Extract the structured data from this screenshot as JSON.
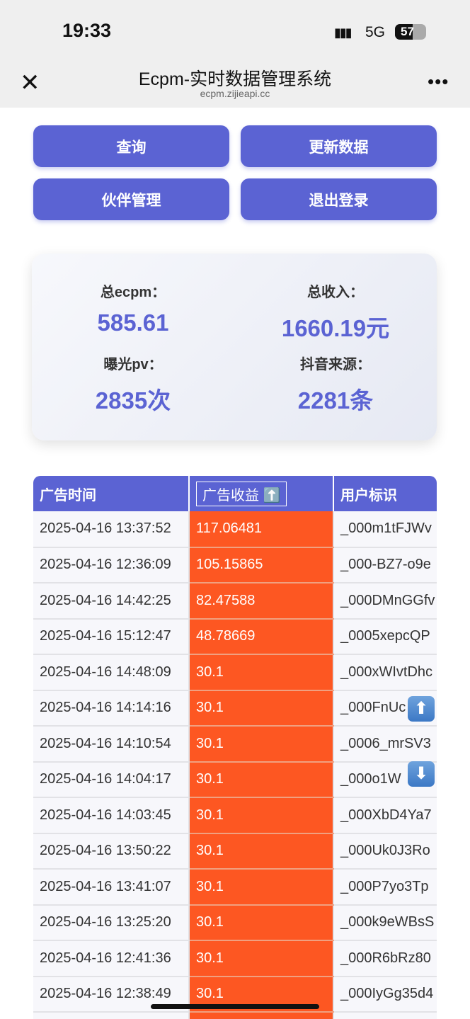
{
  "status": {
    "time": "19:33",
    "signal": "▮▮▮",
    "network": "5G",
    "battery": "57",
    "battery_level": 57
  },
  "browser": {
    "title": "Ecpm-实时数据管理系统",
    "url": "ecpm.zijieapi.cc",
    "close": "✕",
    "more": "•••"
  },
  "buttons": {
    "query": "查询",
    "update": "更新数据",
    "partners": "伙伴管理",
    "logout": "退出登录"
  },
  "stats": {
    "ecpm_label": "总ecpm：",
    "ecpm": "585.61",
    "income_label": "总收入：",
    "income": "1660.19元",
    "pv_label": "曝光pv：",
    "pv": "2835次",
    "source_label": "抖音来源：",
    "source": "2281条"
  },
  "table": {
    "headers": [
      "广告时间",
      "广告收益 ⬆️",
      "用户标识"
    ],
    "rows": [
      [
        "2025-04-16 13:37:52",
        "117.06481",
        "_000m1tFJWv"
      ],
      [
        "2025-04-16 12:36:09",
        "105.15865",
        "_000-BZ7-o9e"
      ],
      [
        "2025-04-16 14:42:25",
        "82.47588",
        "_000DMnGGfv"
      ],
      [
        "2025-04-16 15:12:47",
        "48.78669",
        "_0005xepcQP"
      ],
      [
        "2025-04-16 14:48:09",
        "30.1",
        "_000xWIvtDhc"
      ],
      [
        "2025-04-16 14:14:16",
        "30.1",
        "_000FnUc"
      ],
      [
        "2025-04-16 14:10:54",
        "30.1",
        "_0006_mrSV3"
      ],
      [
        "2025-04-16 14:04:17",
        "30.1",
        "_000o1W"
      ],
      [
        "2025-04-16 14:03:45",
        "30.1",
        "_000XbD4Ya7"
      ],
      [
        "2025-04-16 13:50:22",
        "30.1",
        "_000Uk0J3Ro"
      ],
      [
        "2025-04-16 13:41:07",
        "30.1",
        "_000P7yo3Tp"
      ],
      [
        "2025-04-16 13:25:20",
        "30.1",
        "_000k9eWBsS"
      ],
      [
        "2025-04-16 12:41:36",
        "30.1",
        "_000R6bRz80"
      ],
      [
        "2025-04-16 12:38:49",
        "30.1",
        "_000IyGg35d4"
      ],
      [
        "",
        "",
        ""
      ]
    ]
  },
  "scroll": {
    "up": "⬆",
    "down": "⬇"
  },
  "colors": {
    "accent": "#5b63d3",
    "revenue": "#fd5722"
  }
}
